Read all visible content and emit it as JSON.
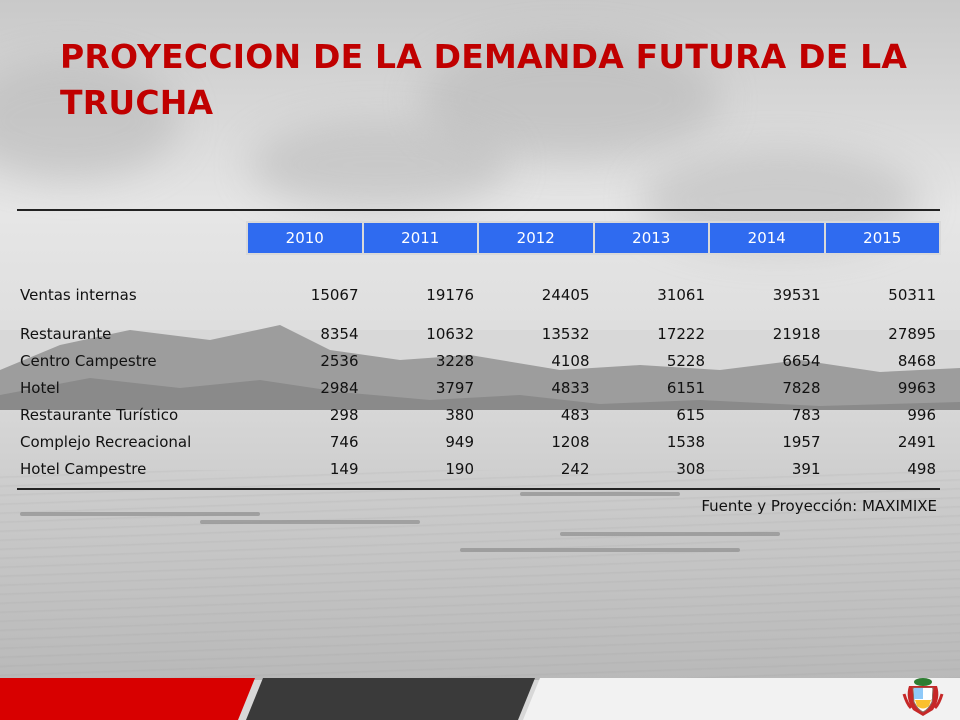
{
  "title": "PROYECCION DE LA DEMANDA FUTURA DE LA TRUCHA",
  "table": {
    "years": [
      "2010",
      "2011",
      "2012",
      "2013",
      "2014",
      "2015"
    ],
    "total": {
      "label": "Ventas internas",
      "values": [
        "15067",
        "19176",
        "24405",
        "31061",
        "39531",
        "50311"
      ]
    },
    "rows": [
      {
        "label": "Restaurante",
        "values": [
          "8354",
          "10632",
          "13532",
          "17222",
          "21918",
          "27895"
        ]
      },
      {
        "label": "Centro Campestre",
        "values": [
          "2536",
          "3228",
          "4108",
          "5228",
          "6654",
          "8468"
        ]
      },
      {
        "label": "Hotel",
        "values": [
          "2984",
          "3797",
          "4833",
          "6151",
          "7828",
          "9963"
        ]
      },
      {
        "label": "Restaurante Turístico",
        "values": [
          "298",
          "380",
          "483",
          "615",
          "783",
          "996"
        ]
      },
      {
        "label": "Complejo Recreacional",
        "values": [
          "746",
          "949",
          "1208",
          "1538",
          "1957",
          "2491"
        ]
      },
      {
        "label": "Hotel Campestre",
        "values": [
          "149",
          "190",
          "242",
          "308",
          "391",
          "498"
        ]
      }
    ]
  },
  "source": "Fuente y Proyección: MAXIMIXE",
  "colors": {
    "title": "#c00000",
    "header_fill": "#2f6bf0",
    "footer_red": "#d80000"
  },
  "icons": {
    "emblem": "peru-coat-of-arms-icon"
  }
}
